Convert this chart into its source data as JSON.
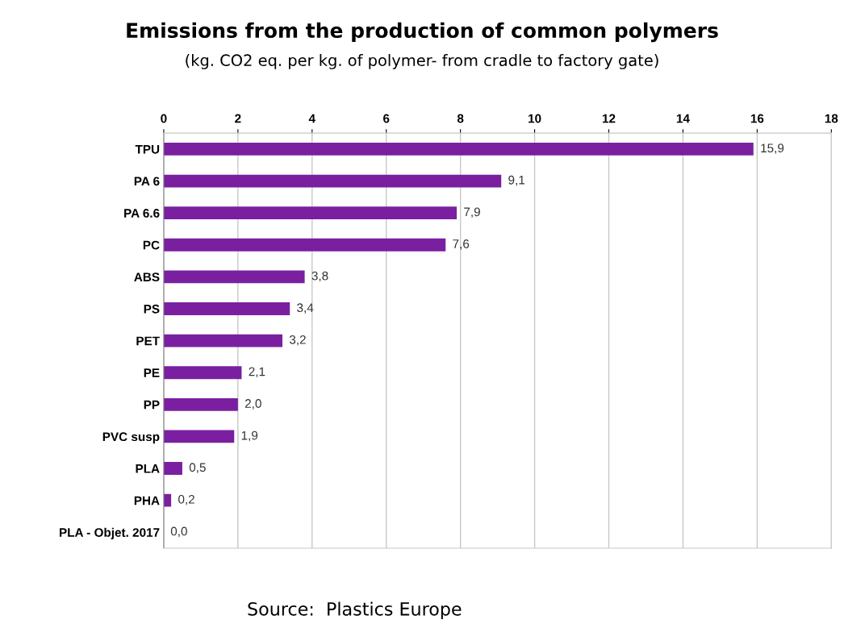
{
  "chart_data": {
    "type": "bar",
    "orientation": "horizontal",
    "title": "Emissions from the production of common polymers",
    "subtitle": "(kg. CO2 eq. per kg. of polymer- from cradle to factory gate)",
    "categories": [
      "TPU",
      "PA 6",
      "PA 6.6",
      "PC",
      "ABS",
      "PS",
      "PET",
      "PE",
      "PP",
      "PVC susp",
      "PLA",
      "PHA",
      "PLA - Objet. 2017"
    ],
    "values": [
      15.9,
      9.1,
      7.9,
      7.6,
      3.8,
      3.4,
      3.2,
      2.1,
      2.0,
      1.9,
      0.5,
      0.2,
      0.0
    ],
    "value_labels": [
      "15,9",
      "9,1",
      "7,9",
      "7,6",
      "3,8",
      "3,4",
      "3,2",
      "2,1",
      "2,0",
      "1,9",
      "0,5",
      "0,2",
      "0,0"
    ],
    "color": "#7a1fa0",
    "xlim": [
      0,
      18
    ],
    "xticks": [
      0,
      2,
      4,
      6,
      8,
      10,
      12,
      14,
      16,
      18
    ],
    "grid": "x",
    "annotations": [
      "Source:  Plastics Europe"
    ]
  }
}
